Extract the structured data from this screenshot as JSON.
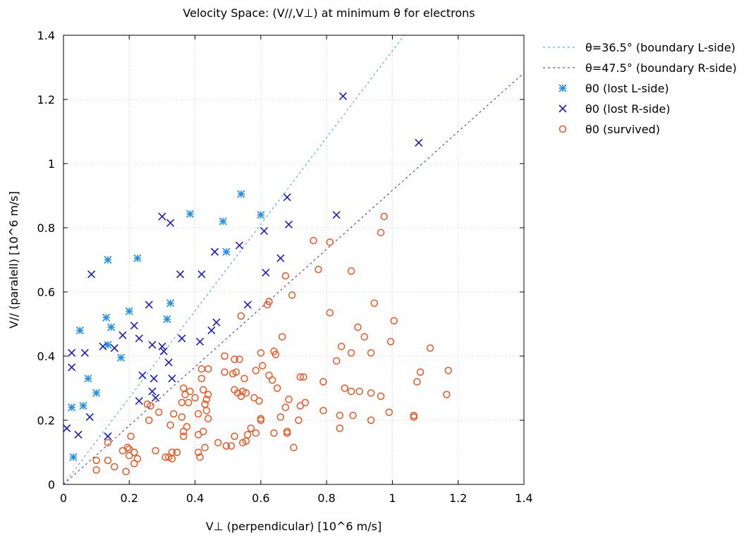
{
  "chart_data": {
    "type": "scatter",
    "title": "Velocity Space: (V//,V⊥) at minimum θ for electrons",
    "xlabel": "V⊥ (perpendicular) [10^6 m/s]",
    "ylabel": "V// (paralell) [10^6 m/s]",
    "xlim": [
      0,
      1.4
    ],
    "ylim": [
      0,
      1.4
    ],
    "xticks": [
      "0",
      "0.2",
      "0.4",
      "0.6",
      "0.8",
      "1",
      "1.2",
      "1.4"
    ],
    "yticks": [
      "0",
      "0.2",
      "0.4",
      "0.6",
      "0.8",
      "1",
      "1.2",
      "1.4"
    ],
    "grid": true,
    "legend_position": "outside-top-right",
    "lines": [
      {
        "name": "θ=36.5° (boundary L-side)",
        "angle_deg": 36.5,
        "color": "#2a9df4",
        "style": "dashed"
      },
      {
        "name": "θ=47.5° (boundary R-side)",
        "angle_deg": 47.5,
        "color": "#2b2bc4",
        "style": "dashed"
      }
    ],
    "series": [
      {
        "name": "θ0 (lost L-side)",
        "marker": "star",
        "color": "#1e90e8",
        "points": [
          [
            0.54,
            0.905
          ],
          [
            0.385,
            0.843
          ],
          [
            0.6,
            0.84
          ],
          [
            0.485,
            0.82
          ],
          [
            0.495,
            0.725
          ],
          [
            0.225,
            0.705
          ],
          [
            0.135,
            0.7
          ],
          [
            0.325,
            0.565
          ],
          [
            0.2,
            0.54
          ],
          [
            0.13,
            0.52
          ],
          [
            0.315,
            0.515
          ],
          [
            0.145,
            0.49
          ],
          [
            0.05,
            0.48
          ],
          [
            0.135,
            0.435
          ],
          [
            0.175,
            0.395
          ],
          [
            0.075,
            0.33
          ],
          [
            0.1,
            0.285
          ],
          [
            0.06,
            0.245
          ],
          [
            0.025,
            0.24
          ],
          [
            0.03,
            0.085
          ]
        ]
      },
      {
        "name": "θ0 (lost R-side)",
        "marker": "x",
        "color": "#1a1ad0",
        "points": [
          [
            0.85,
            1.21
          ],
          [
            1.08,
            1.065
          ],
          [
            0.68,
            0.895
          ],
          [
            0.83,
            0.84
          ],
          [
            0.3,
            0.835
          ],
          [
            0.325,
            0.815
          ],
          [
            0.685,
            0.81
          ],
          [
            0.61,
            0.79
          ],
          [
            0.535,
            0.745
          ],
          [
            0.46,
            0.725
          ],
          [
            0.66,
            0.705
          ],
          [
            0.085,
            0.655
          ],
          [
            0.355,
            0.655
          ],
          [
            0.42,
            0.655
          ],
          [
            0.615,
            0.66
          ],
          [
            0.26,
            0.56
          ],
          [
            0.56,
            0.56
          ],
          [
            0.215,
            0.495
          ],
          [
            0.465,
            0.505
          ],
          [
            0.45,
            0.48
          ],
          [
            0.18,
            0.465
          ],
          [
            0.23,
            0.455
          ],
          [
            0.36,
            0.455
          ],
          [
            0.12,
            0.43
          ],
          [
            0.155,
            0.425
          ],
          [
            0.27,
            0.435
          ],
          [
            0.3,
            0.43
          ],
          [
            0.415,
            0.445
          ],
          [
            0.025,
            0.41
          ],
          [
            0.065,
            0.41
          ],
          [
            0.305,
            0.415
          ],
          [
            0.025,
            0.365
          ],
          [
            0.32,
            0.38
          ],
          [
            0.24,
            0.34
          ],
          [
            0.275,
            0.33
          ],
          [
            0.33,
            0.33
          ],
          [
            0.27,
            0.29
          ],
          [
            0.28,
            0.27
          ],
          [
            0.23,
            0.26
          ],
          [
            0.08,
            0.21
          ],
          [
            0.01,
            0.175
          ],
          [
            0.045,
            0.155
          ],
          [
            0.135,
            0.15
          ]
        ]
      },
      {
        "name": "θ0 (survived)",
        "marker": "circle",
        "color": "#f0531e",
        "points": [
          [
            0.975,
            0.835
          ],
          [
            0.965,
            0.785
          ],
          [
            0.76,
            0.76
          ],
          [
            0.81,
            0.755
          ],
          [
            0.775,
            0.67
          ],
          [
            0.875,
            0.665
          ],
          [
            0.675,
            0.65
          ],
          [
            0.695,
            0.59
          ],
          [
            0.625,
            0.57
          ],
          [
            0.62,
            0.56
          ],
          [
            0.945,
            0.565
          ],
          [
            0.81,
            0.535
          ],
          [
            0.54,
            0.525
          ],
          [
            1.005,
            0.51
          ],
          [
            0.895,
            0.49
          ],
          [
            0.665,
            0.46
          ],
          [
            0.915,
            0.46
          ],
          [
            0.995,
            0.445
          ],
          [
            0.845,
            0.43
          ],
          [
            1.115,
            0.425
          ],
          [
            0.6,
            0.41
          ],
          [
            0.64,
            0.415
          ],
          [
            0.645,
            0.405
          ],
          [
            0.875,
            0.41
          ],
          [
            0.935,
            0.41
          ],
          [
            0.49,
            0.4
          ],
          [
            0.52,
            0.39
          ],
          [
            0.535,
            0.39
          ],
          [
            0.83,
            0.385
          ],
          [
            0.42,
            0.36
          ],
          [
            0.44,
            0.36
          ],
          [
            0.49,
            0.35
          ],
          [
            0.515,
            0.345
          ],
          [
            0.525,
            0.35
          ],
          [
            0.585,
            0.355
          ],
          [
            0.605,
            0.37
          ],
          [
            0.625,
            0.34
          ],
          [
            0.72,
            0.335
          ],
          [
            0.73,
            0.335
          ],
          [
            1.085,
            0.35
          ],
          [
            1.17,
            0.355
          ],
          [
            0.42,
            0.33
          ],
          [
            0.55,
            0.33
          ],
          [
            0.635,
            0.325
          ],
          [
            0.79,
            0.32
          ],
          [
            1.075,
            0.32
          ],
          [
            0.365,
            0.3
          ],
          [
            0.385,
            0.29
          ],
          [
            0.425,
            0.295
          ],
          [
            0.44,
            0.28
          ],
          [
            0.52,
            0.295
          ],
          [
            0.53,
            0.285
          ],
          [
            0.545,
            0.29
          ],
          [
            0.54,
            0.275
          ],
          [
            0.555,
            0.285
          ],
          [
            0.65,
            0.3
          ],
          [
            0.855,
            0.3
          ],
          [
            0.875,
            0.29
          ],
          [
            0.9,
            0.29
          ],
          [
            0.935,
            0.285
          ],
          [
            0.965,
            0.275
          ],
          [
            1.165,
            0.28
          ],
          [
            0.37,
            0.28
          ],
          [
            0.4,
            0.27
          ],
          [
            0.435,
            0.265
          ],
          [
            0.58,
            0.27
          ],
          [
            0.595,
            0.26
          ],
          [
            0.685,
            0.265
          ],
          [
            0.735,
            0.255
          ],
          [
            0.255,
            0.25
          ],
          [
            0.265,
            0.245
          ],
          [
            0.36,
            0.255
          ],
          [
            0.38,
            0.255
          ],
          [
            0.43,
            0.25
          ],
          [
            0.6,
            0.2
          ],
          [
            0.675,
            0.24
          ],
          [
            0.72,
            0.245
          ],
          [
            0.29,
            0.225
          ],
          [
            0.335,
            0.22
          ],
          [
            0.36,
            0.21
          ],
          [
            0.41,
            0.22
          ],
          [
            0.435,
            0.23
          ],
          [
            0.66,
            0.21
          ],
          [
            0.79,
            0.23
          ],
          [
            0.84,
            0.215
          ],
          [
            0.88,
            0.215
          ],
          [
            0.99,
            0.225
          ],
          [
            1.065,
            0.21
          ],
          [
            1.065,
            0.215
          ],
          [
            0.26,
            0.2
          ],
          [
            0.325,
            0.185
          ],
          [
            0.375,
            0.18
          ],
          [
            0.44,
            0.205
          ],
          [
            0.6,
            0.205
          ],
          [
            0.715,
            0.2
          ],
          [
            0.365,
            0.165
          ],
          [
            0.425,
            0.165
          ],
          [
            0.57,
            0.175
          ],
          [
            0.64,
            0.16
          ],
          [
            0.68,
            0.165
          ],
          [
            0.68,
            0.16
          ],
          [
            0.84,
            0.175
          ],
          [
            0.935,
            0.2
          ],
          [
            0.205,
            0.15
          ],
          [
            0.365,
            0.15
          ],
          [
            0.41,
            0.155
          ],
          [
            0.52,
            0.15
          ],
          [
            0.56,
            0.155
          ],
          [
            0.585,
            0.16
          ],
          [
            0.47,
            0.13
          ],
          [
            0.545,
            0.13
          ],
          [
            0.555,
            0.135
          ],
          [
            0.135,
            0.13
          ],
          [
            0.495,
            0.12
          ],
          [
            0.51,
            0.12
          ],
          [
            0.7,
            0.115
          ],
          [
            0.195,
            0.115
          ],
          [
            0.2,
            0.11
          ],
          [
            0.18,
            0.105
          ],
          [
            0.28,
            0.105
          ],
          [
            0.33,
            0.1
          ],
          [
            0.345,
            0.1
          ],
          [
            0.43,
            0.115
          ],
          [
            0.41,
            0.1
          ],
          [
            0.215,
            0.1
          ],
          [
            0.2,
            0.09
          ],
          [
            0.225,
            0.08
          ],
          [
            0.1,
            0.075
          ],
          [
            0.135,
            0.075
          ],
          [
            0.31,
            0.085
          ],
          [
            0.33,
            0.08
          ],
          [
            0.415,
            0.085
          ],
          [
            0.155,
            0.055
          ],
          [
            0.215,
            0.065
          ],
          [
            0.1,
            0.045
          ],
          [
            0.19,
            0.04
          ],
          [
            0.32,
            0.085
          ]
        ]
      }
    ]
  }
}
